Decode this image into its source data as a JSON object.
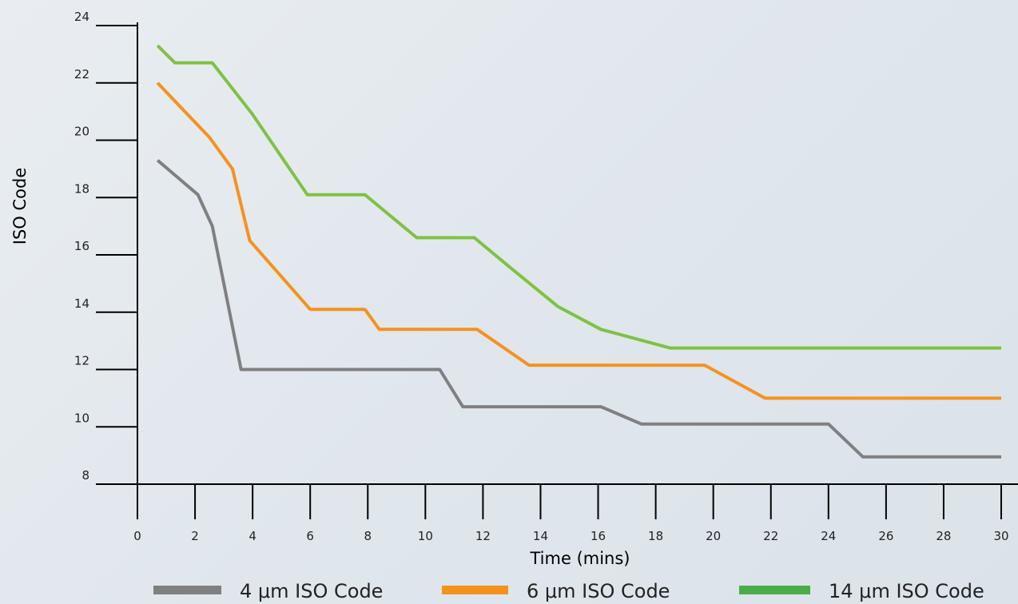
{
  "chart_data": {
    "type": "line",
    "xlabel": "Time (mins)",
    "ylabel": "ISO Code",
    "xlim": [
      0,
      30
    ],
    "ylim": [
      8,
      24
    ],
    "x_ticks": [
      "0",
      "2",
      "4",
      "6",
      "8",
      "10",
      "12",
      "14",
      "16",
      "18",
      "20",
      "22",
      "24",
      "26",
      "28",
      "30"
    ],
    "y_ticks": [
      "8",
      "10",
      "12",
      "14",
      "16",
      "18",
      "20",
      "22",
      "24"
    ],
    "grid": false,
    "legend_position": "bottom",
    "series": [
      {
        "name": "4 μm ISO Code",
        "color": "#808080",
        "points": [
          [
            0.7,
            19.3
          ],
          [
            2.1,
            18.1
          ],
          [
            2.6,
            17.0
          ],
          [
            3.6,
            12.0
          ],
          [
            10.5,
            12.0
          ],
          [
            11.3,
            10.7
          ],
          [
            16.1,
            10.7
          ],
          [
            17.5,
            10.1
          ],
          [
            24.0,
            10.1
          ],
          [
            25.2,
            8.95
          ],
          [
            30.0,
            8.95
          ]
        ]
      },
      {
        "name": "6 μm ISO Code",
        "color": "#f5921e",
        "points": [
          [
            0.7,
            22.0
          ],
          [
            2.5,
            20.1
          ],
          [
            3.3,
            19.0
          ],
          [
            3.9,
            16.5
          ],
          [
            6.0,
            14.1
          ],
          [
            7.9,
            14.1
          ],
          [
            8.4,
            13.4
          ],
          [
            11.8,
            13.4
          ],
          [
            13.6,
            12.15
          ],
          [
            19.7,
            12.15
          ],
          [
            21.8,
            11.0
          ],
          [
            30.0,
            11.0
          ]
        ]
      },
      {
        "name": "14 μm ISO Code",
        "color": "#7ec242",
        "legend_color": "#4aac48",
        "points": [
          [
            0.7,
            23.3
          ],
          [
            1.3,
            22.7
          ],
          [
            2.6,
            22.7
          ],
          [
            4.0,
            20.9
          ],
          [
            5.9,
            18.1
          ],
          [
            7.9,
            18.1
          ],
          [
            9.7,
            16.6
          ],
          [
            11.7,
            16.6
          ],
          [
            12.9,
            15.6
          ],
          [
            14.6,
            14.2
          ],
          [
            16.1,
            13.4
          ],
          [
            18.5,
            12.75
          ],
          [
            30.0,
            12.75
          ]
        ]
      }
    ]
  }
}
